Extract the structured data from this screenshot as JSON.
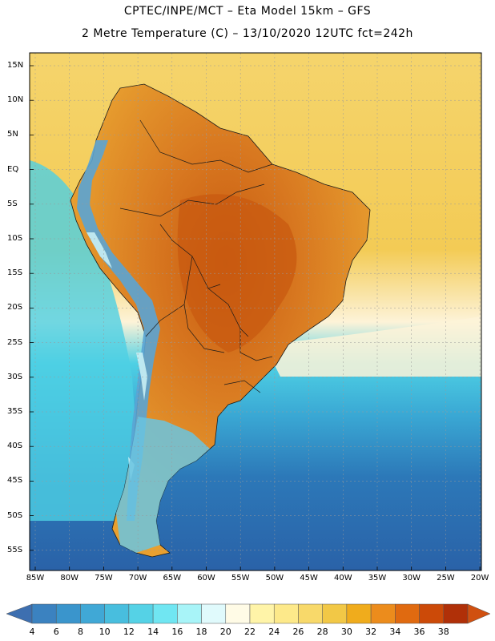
{
  "title_line1": "CPTEC/INPE/MCT –  Eta Model 15km – GFS",
  "title_line2": "2 Metre Temperature (C) – 13/10/2020 12UTC fct=242h",
  "lat_labels": [
    "15N",
    "10N",
    "5N",
    "EQ",
    "5S",
    "10S",
    "15S",
    "20S",
    "25S",
    "30S",
    "35S",
    "40S",
    "45S",
    "50S",
    "55S"
  ],
  "lon_labels": [
    "85W",
    "80W",
    "75W",
    "70W",
    "65W",
    "60W",
    "55W",
    "50W",
    "45W",
    "40W",
    "35W",
    "30W",
    "25W",
    "20W"
  ],
  "colorbar": {
    "ticks": [
      "4",
      "6",
      "8",
      "10",
      "12",
      "14",
      "16",
      "18",
      "20",
      "22",
      "24",
      "26",
      "28",
      "30",
      "32",
      "34",
      "36",
      "38"
    ],
    "colors": [
      "#3d6fb0",
      "#3b82c0",
      "#3a95cc",
      "#40a8d6",
      "#48bede",
      "#55d2e6",
      "#70e6f2",
      "#a8f4f8",
      "#e0fafc",
      "#fffbe6",
      "#fff4a8",
      "#fde98a",
      "#f8d96a",
      "#f2c846",
      "#f0ac1c",
      "#ec8c1c",
      "#e06a10",
      "#cc4a08",
      "#b03008",
      "#d05010"
    ]
  },
  "map_colors": {
    "ocean_north": "#f5d46c",
    "ocean_tropical": "#f3cb55",
    "ocean_cream": "#fdf3d8",
    "ocean_cyan": "#4ed0e4",
    "ocean_mid": "#3aa8d4",
    "ocean_south": "#2c78b8",
    "ocean_deep": "#2a62a8",
    "land_warm": "#e8a030",
    "land_hot": "#d87820",
    "land_core": "#c85a10",
    "andes": "#5aa4d4",
    "andes_cold": "#c8eef4",
    "patagonia": "#6ac4e0"
  },
  "chart_data": {
    "type": "heatmap",
    "title": "CPTEC/INPE/MCT – Eta Model 15km – GFS",
    "subtitle": "2 Metre Temperature (C) – 13/10/2020 12UTC fct=242h",
    "variable": "2 Metre Temperature",
    "units": "C",
    "x_range_deg_lon": [
      -85,
      -20
    ],
    "y_range_deg_lat": [
      -57,
      16
    ],
    "colorbar_ticks": [
      4,
      6,
      8,
      10,
      12,
      14,
      16,
      18,
      20,
      22,
      24,
      26,
      28,
      30,
      32,
      34,
      36,
      38
    ],
    "grid": true
  }
}
